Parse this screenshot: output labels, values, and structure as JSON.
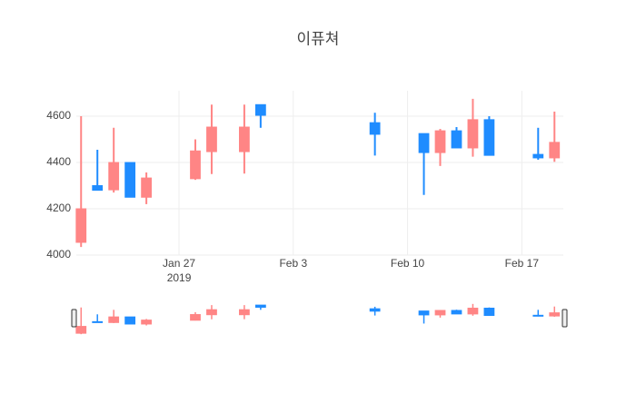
{
  "chart_data": {
    "type": "candlestick",
    "title": "이퓨쳐",
    "x": [
      "2019-01-21",
      "2019-01-22",
      "2019-01-23",
      "2019-01-24",
      "2019-01-25",
      "2019-01-28",
      "2019-01-29",
      "2019-01-31",
      "2019-02-01",
      "2019-02-08",
      "2019-02-11",
      "2019-02-12",
      "2019-02-13",
      "2019-02-14",
      "2019-02-15",
      "2019-02-18",
      "2019-02-19"
    ],
    "open": [
      4055,
      4300,
      4282,
      4400,
      4250,
      4330,
      4447,
      4447,
      4650,
      4572,
      4525,
      4443,
      4537,
      4463,
      4585,
      4435,
      4420
    ],
    "high": [
      4600,
      4455,
      4550,
      4400,
      4357,
      4500,
      4650,
      4650,
      4650,
      4615,
      4525,
      4545,
      4553,
      4675,
      4600,
      4550,
      4620
    ],
    "low": [
      4035,
      4280,
      4270,
      4250,
      4220,
      4325,
      4350,
      4352,
      4550,
      4430,
      4260,
      4385,
      4463,
      4425,
      4431,
      4412,
      4403
    ],
    "close": [
      4200,
      4280,
      4400,
      4250,
      4333,
      4450,
      4553,
      4553,
      4604,
      4522,
      4443,
      4537,
      4463,
      4585,
      4431,
      4420,
      4487
    ],
    "increasing_color": "#ff8585",
    "decreasing_color": "#1f8cff",
    "xlim": [
      "2019-01-20T17:00:00Z",
      "2019-02-19T13:00:00Z"
    ],
    "xticks": [
      {
        "value": "2019-01-27",
        "label": "Jan 27"
      },
      {
        "value": "2019-02-03",
        "label": "Feb 3"
      },
      {
        "value": "2019-02-10",
        "label": "Feb 10"
      },
      {
        "value": "2019-02-17",
        "label": "Feb 17"
      }
    ],
    "xtick_year": "2019",
    "ylim": [
      4000,
      4710
    ],
    "yticks": [
      4000,
      4200,
      4400,
      4600
    ],
    "grid": true,
    "rangeslider": true
  }
}
